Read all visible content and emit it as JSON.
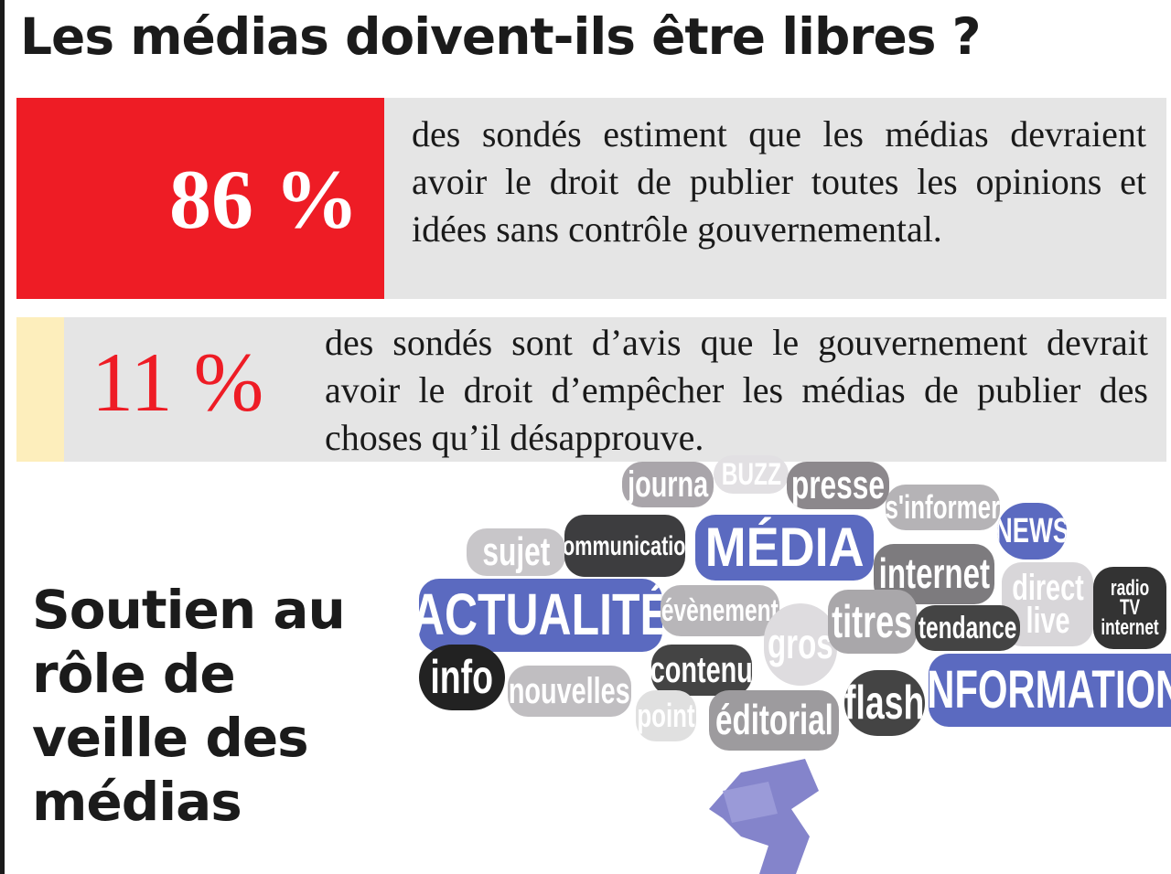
{
  "title": "Les médias doivent-ils être libres ?",
  "stats": [
    {
      "value": "86 %",
      "text": "des sondés estiment que les médias devraient avoir le droit de publier toutes les opinions et idées sans contrôle gouvernemental.",
      "color": "#ee1c25"
    },
    {
      "value": "11 %",
      "text": "des sondés sont d’avis que le gouvernement devrait avoir le droit d’empêcher les médias de publier des choses qu’il désapprouve.",
      "color": "#ee1c25"
    }
  ],
  "subheading": "Soutien au rôle de veille des médias",
  "word_cloud": [
    "journa",
    "BUZZ",
    "presse",
    "s'informer",
    "NEWS",
    "sujet",
    "communication",
    "MÉDIA",
    "internet",
    "direct live",
    "radio TV internet",
    "ACTUALITÉ",
    "évènement",
    "gros",
    "titres",
    "tendance",
    "info",
    "contenu",
    "nouvelles",
    "point",
    "éditorial",
    "flash",
    "INFORMATION"
  ],
  "colors": {
    "red": "#ee1c25",
    "grey": "#e5e5e5",
    "yellow": "#fdeebc",
    "bubble_blue": "#5b6ac0"
  }
}
